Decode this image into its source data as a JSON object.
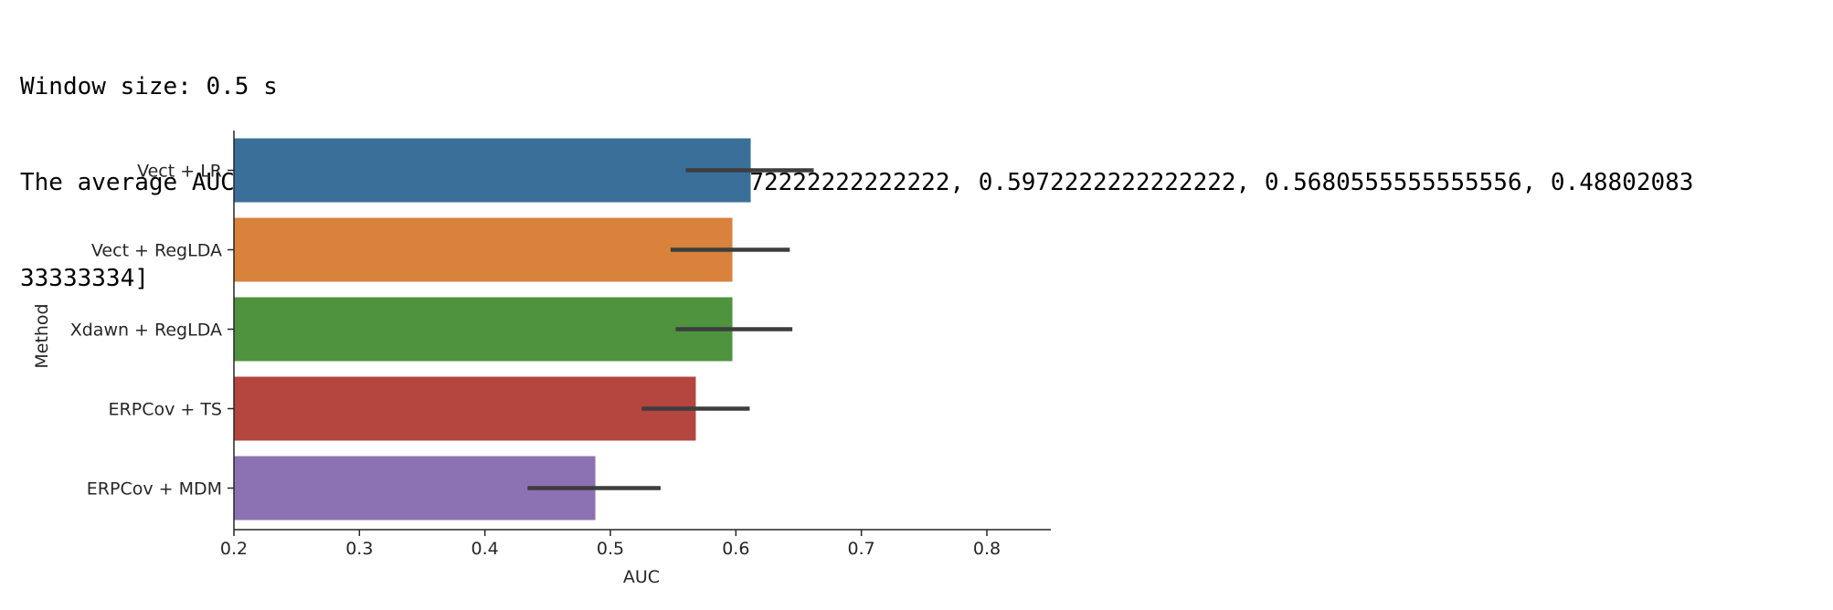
{
  "output": {
    "line1": "Window size: 0.5 s",
    "line2": "The average AUC score is: [0.6118055555555555, 0.5972222222222222, 0.5972222222222222, 0.5680555555555556, 0.48802083",
    "line3": "33333334]"
  },
  "chart_data": {
    "type": "bar",
    "orientation": "horizontal",
    "xlabel": "AUC",
    "ylabel": "Method",
    "xlim": [
      0.2,
      0.85
    ],
    "xticks": [
      0.2,
      0.3,
      0.4,
      0.5,
      0.6,
      0.7,
      0.8
    ],
    "xtick_labels": [
      "0.2",
      "0.3",
      "0.4",
      "0.5",
      "0.6",
      "0.7",
      "0.8"
    ],
    "grid": false,
    "categories": [
      "Vect + LR",
      "Vect + RegLDA",
      "Xdawn + RegLDA",
      "ERPCov + TS",
      "ERPCov + MDM"
    ],
    "values": [
      0.6118055555555555,
      0.5972222222222222,
      0.5972222222222222,
      0.5680555555555556,
      0.4880208333333334
    ],
    "error_low": [
      0.56,
      0.548,
      0.552,
      0.525,
      0.434
    ],
    "error_high": [
      0.662,
      0.643,
      0.645,
      0.611,
      0.54
    ],
    "colors": [
      "#3a6f9a",
      "#d8823c",
      "#4f933f",
      "#b4463f",
      "#8c72b2"
    ],
    "error_color": "#3d3d3d"
  }
}
